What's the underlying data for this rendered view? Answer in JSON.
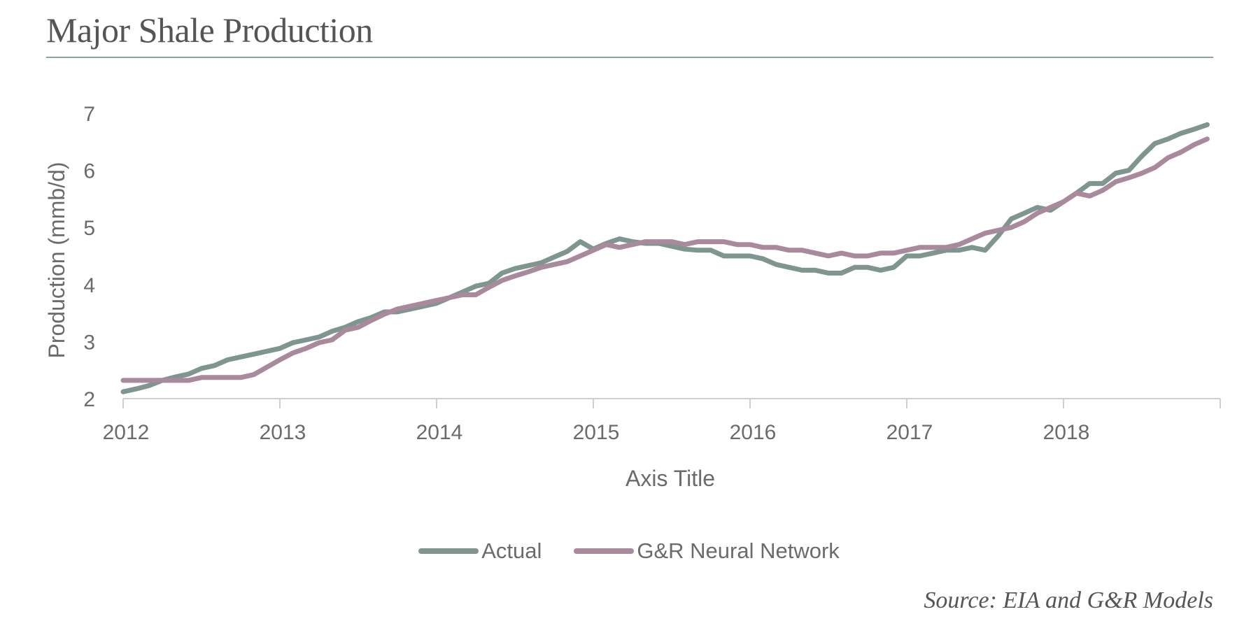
{
  "header": {
    "title": "Major Shale Production"
  },
  "footer": {
    "source": "Source: EIA and G&R Models"
  },
  "chart_data": {
    "type": "line",
    "xlabel": "Axis Title",
    "ylabel": "Production (mmb/d)",
    "xlim": [
      2012,
      2019
    ],
    "ylim": [
      2,
      7
    ],
    "xticks": [
      "2012",
      "2013",
      "2014",
      "2015",
      "2016",
      "2017",
      "2018"
    ],
    "yticks": [
      "2",
      "3",
      "4",
      "5",
      "6",
      "7"
    ],
    "grid": false,
    "legend_position": "bottom",
    "series": [
      {
        "name": "Actual",
        "color": "#7f9690",
        "x": [
          2012.0,
          2012.083,
          2012.167,
          2012.25,
          2012.333,
          2012.417,
          2012.5,
          2012.583,
          2012.667,
          2012.75,
          2012.833,
          2012.917,
          2013.0,
          2013.083,
          2013.167,
          2013.25,
          2013.333,
          2013.417,
          2013.5,
          2013.583,
          2013.667,
          2013.75,
          2013.833,
          2013.917,
          2014.0,
          2014.083,
          2014.167,
          2014.25,
          2014.333,
          2014.417,
          2014.5,
          2014.583,
          2014.667,
          2014.75,
          2014.833,
          2014.917,
          2015.0,
          2015.083,
          2015.167,
          2015.25,
          2015.333,
          2015.417,
          2015.5,
          2015.583,
          2015.667,
          2015.75,
          2015.833,
          2015.917,
          2016.0,
          2016.083,
          2016.167,
          2016.25,
          2016.333,
          2016.417,
          2016.5,
          2016.583,
          2016.667,
          2016.75,
          2016.833,
          2016.917,
          2017.0,
          2017.083,
          2017.167,
          2017.25,
          2017.333,
          2017.417,
          2017.5,
          2017.583,
          2017.667,
          2017.75,
          2017.833,
          2017.917,
          2018.0,
          2018.083,
          2018.167,
          2018.25,
          2018.333,
          2018.417,
          2018.5,
          2018.583,
          2018.667,
          2018.75,
          2018.833,
          2018.917
        ],
        "values": [
          2.12,
          2.17,
          2.23,
          2.32,
          2.38,
          2.43,
          2.53,
          2.58,
          2.68,
          2.73,
          2.78,
          2.83,
          2.88,
          2.98,
          3.03,
          3.08,
          3.18,
          3.25,
          3.35,
          3.42,
          3.52,
          3.52,
          3.57,
          3.62,
          3.67,
          3.77,
          3.87,
          3.97,
          4.02,
          4.2,
          4.28,
          4.33,
          4.38,
          4.48,
          4.58,
          4.75,
          4.62,
          4.72,
          4.8,
          4.75,
          4.72,
          4.72,
          4.67,
          4.62,
          4.6,
          4.6,
          4.5,
          4.5,
          4.5,
          4.45,
          4.35,
          4.3,
          4.25,
          4.25,
          4.2,
          4.2,
          4.3,
          4.3,
          4.25,
          4.3,
          4.5,
          4.5,
          4.55,
          4.6,
          4.6,
          4.65,
          4.6,
          4.85,
          5.15,
          5.25,
          5.35,
          5.3,
          5.45,
          5.6,
          5.77,
          5.77,
          5.95,
          6.0,
          6.25,
          6.47,
          6.55,
          6.65,
          6.72,
          6.8
        ]
      },
      {
        "name": "G&R Neural Network",
        "color": "#a9899c",
        "x": [
          2012.0,
          2012.083,
          2012.167,
          2012.25,
          2012.333,
          2012.417,
          2012.5,
          2012.583,
          2012.667,
          2012.75,
          2012.833,
          2012.917,
          2013.0,
          2013.083,
          2013.167,
          2013.25,
          2013.333,
          2013.417,
          2013.5,
          2013.583,
          2013.667,
          2013.75,
          2013.833,
          2013.917,
          2014.0,
          2014.083,
          2014.167,
          2014.25,
          2014.333,
          2014.417,
          2014.5,
          2014.583,
          2014.667,
          2014.75,
          2014.833,
          2014.917,
          2015.0,
          2015.083,
          2015.167,
          2015.25,
          2015.333,
          2015.417,
          2015.5,
          2015.583,
          2015.667,
          2015.75,
          2015.833,
          2015.917,
          2016.0,
          2016.083,
          2016.167,
          2016.25,
          2016.333,
          2016.417,
          2016.5,
          2016.583,
          2016.667,
          2016.75,
          2016.833,
          2016.917,
          2017.0,
          2017.083,
          2017.167,
          2017.25,
          2017.333,
          2017.417,
          2017.5,
          2017.583,
          2017.667,
          2017.75,
          2017.833,
          2017.917,
          2018.0,
          2018.083,
          2018.167,
          2018.25,
          2018.333,
          2018.417,
          2018.5,
          2018.583,
          2018.667,
          2018.75,
          2018.833,
          2018.917
        ],
        "values": [
          2.32,
          2.32,
          2.32,
          2.32,
          2.32,
          2.32,
          2.37,
          2.37,
          2.37,
          2.37,
          2.42,
          2.55,
          2.68,
          2.8,
          2.88,
          2.98,
          3.03,
          3.2,
          3.25,
          3.37,
          3.48,
          3.57,
          3.62,
          3.67,
          3.72,
          3.77,
          3.82,
          3.82,
          3.95,
          4.07,
          4.15,
          4.22,
          4.3,
          4.35,
          4.4,
          4.5,
          4.6,
          4.7,
          4.65,
          4.7,
          4.75,
          4.75,
          4.75,
          4.7,
          4.75,
          4.75,
          4.75,
          4.7,
          4.7,
          4.65,
          4.65,
          4.6,
          4.6,
          4.55,
          4.5,
          4.55,
          4.5,
          4.5,
          4.55,
          4.55,
          4.6,
          4.65,
          4.65,
          4.65,
          4.7,
          4.8,
          4.9,
          4.95,
          5.0,
          5.1,
          5.25,
          5.35,
          5.45,
          5.6,
          5.55,
          5.65,
          5.8,
          5.87,
          5.95,
          6.05,
          6.22,
          6.32,
          6.45,
          6.55
        ]
      }
    ]
  }
}
